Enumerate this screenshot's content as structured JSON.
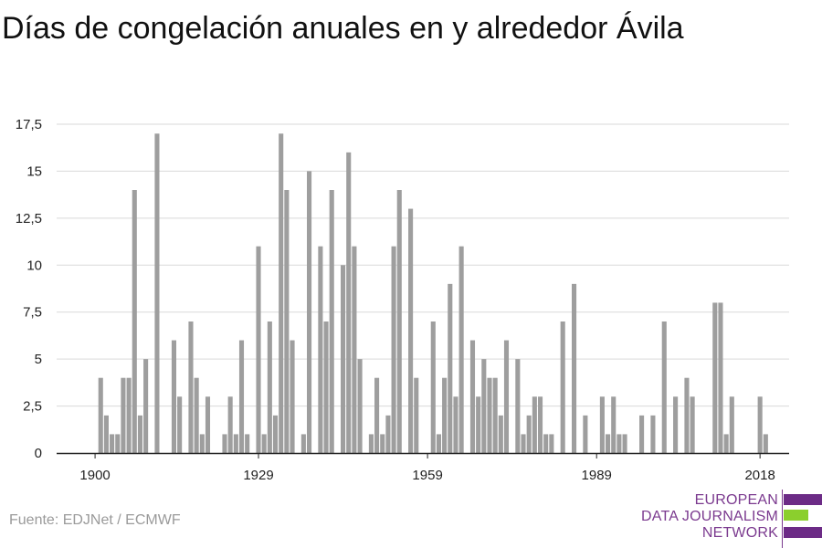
{
  "title": "Días de congelación anuales en y alrededor Ávila",
  "source": "Fuente: EDJNet / ECMWF",
  "logo": {
    "line1": "EUROPEAN",
    "line2": "DATA JOURNALISM",
    "line3": "NETWORK",
    "colors": {
      "purple": "#6c2b86",
      "green": "#8bcf2d"
    }
  },
  "colors": {
    "bar": "#9e9e9e",
    "grid": "#d9d9d9",
    "axis": "#222222",
    "text": "#222222"
  },
  "chart_data": {
    "type": "bar",
    "title": "Días de congelación anuales en y alrededor Ávila",
    "xlabel": "",
    "ylabel": "",
    "ylim": [
      0,
      17.5
    ],
    "yticks": [
      0,
      2.5,
      5,
      7.5,
      10,
      12.5,
      15,
      17.5
    ],
    "ytick_labels": [
      "0",
      "2,5",
      "5",
      "7,5",
      "10",
      "12,5",
      "15",
      "17,5"
    ],
    "xticks": [
      1900,
      1929,
      1959,
      1989,
      2018
    ],
    "xtick_labels": [
      "1900",
      "1929",
      "1959",
      "1989",
      "2018"
    ],
    "grid": true,
    "categories": [
      1900,
      1901,
      1902,
      1903,
      1904,
      1905,
      1906,
      1907,
      1908,
      1909,
      1910,
      1911,
      1912,
      1913,
      1914,
      1915,
      1916,
      1917,
      1918,
      1919,
      1920,
      1921,
      1922,
      1923,
      1924,
      1925,
      1926,
      1927,
      1928,
      1929,
      1930,
      1931,
      1932,
      1933,
      1934,
      1935,
      1936,
      1937,
      1938,
      1939,
      1940,
      1941,
      1942,
      1943,
      1944,
      1945,
      1946,
      1947,
      1948,
      1949,
      1950,
      1951,
      1952,
      1953,
      1954,
      1955,
      1956,
      1957,
      1958,
      1959,
      1960,
      1961,
      1962,
      1963,
      1964,
      1965,
      1966,
      1967,
      1968,
      1969,
      1970,
      1971,
      1972,
      1973,
      1974,
      1975,
      1976,
      1977,
      1978,
      1979,
      1980,
      1981,
      1982,
      1983,
      1984,
      1985,
      1986,
      1987,
      1988,
      1989,
      1990,
      1991,
      1992,
      1993,
      1994,
      1995,
      1996,
      1997,
      1998,
      1999,
      2000,
      2001,
      2002,
      2003,
      2004,
      2005,
      2006,
      2007,
      2008,
      2009,
      2010,
      2011,
      2012,
      2013,
      2014,
      2015,
      2016,
      2017,
      2018,
      2019
    ],
    "values": [
      0,
      4,
      2,
      1,
      1,
      4,
      4,
      14,
      2,
      5,
      0,
      17,
      0,
      0,
      6,
      3,
      0,
      7,
      4,
      1,
      3,
      0,
      0,
      1,
      3,
      1,
      6,
      1,
      0,
      11,
      1,
      7,
      2,
      17,
      14,
      6,
      0,
      1,
      15,
      0,
      11,
      7,
      14,
      0,
      10,
      16,
      11,
      5,
      0,
      1,
      4,
      1,
      2,
      11,
      14,
      0,
      13,
      4,
      0,
      0,
      7,
      1,
      4,
      9,
      3,
      11,
      0,
      6,
      3,
      5,
      4,
      4,
      2,
      6,
      0,
      5,
      1,
      2,
      3,
      3,
      1,
      1,
      0,
      7,
      0,
      9,
      0,
      2,
      0,
      0,
      3,
      1,
      3,
      1,
      1,
      0,
      0,
      2,
      0,
      2,
      0,
      7,
      0,
      3,
      0,
      4,
      3,
      0,
      0,
      0,
      8,
      8,
      1,
      3,
      0,
      0,
      0,
      0,
      3,
      1
    ]
  }
}
